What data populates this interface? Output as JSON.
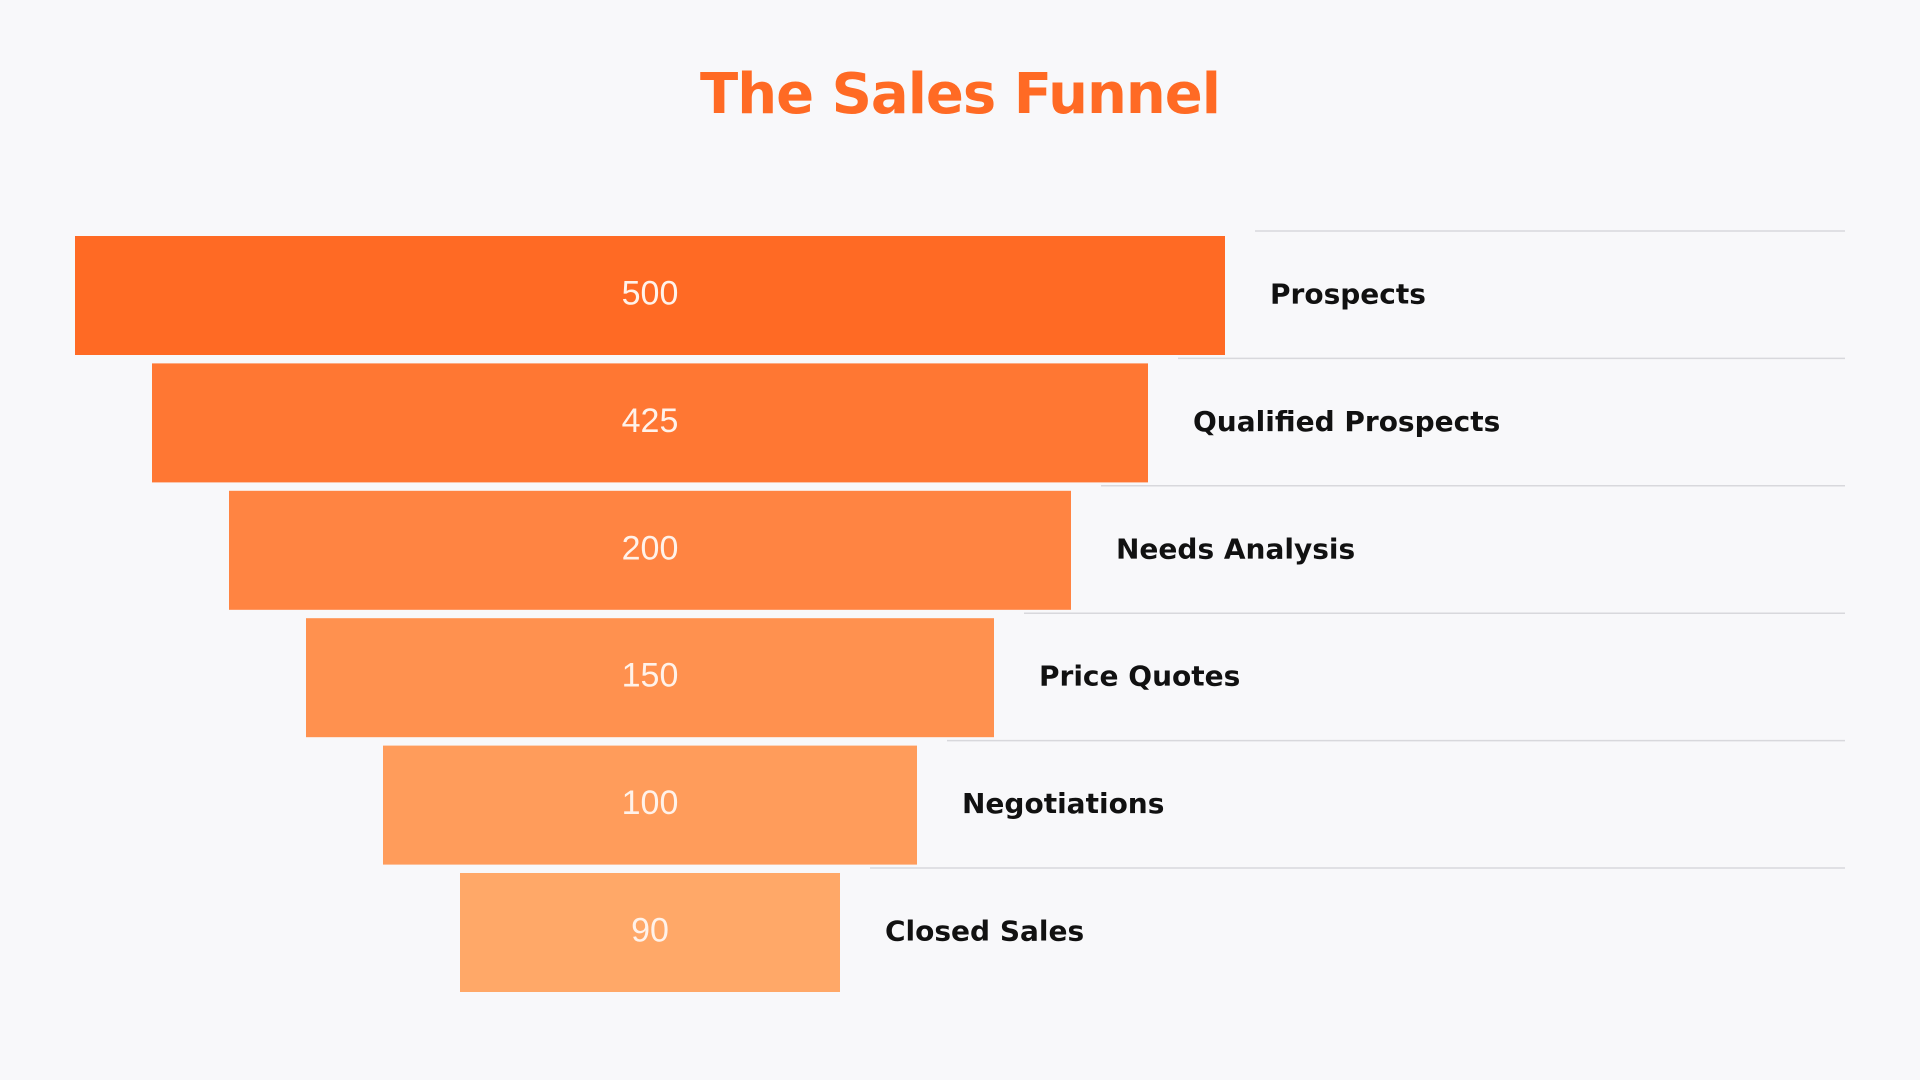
{
  "chart_data": {
    "type": "funnel",
    "title": "The Sales Funnel",
    "categories": [
      "Prospects",
      "Qualified Prospects",
      "Needs Analysis",
      "Price Quotes",
      "Negotiations",
      "Closed Sales"
    ],
    "values": [
      500,
      425,
      200,
      150,
      100,
      90
    ],
    "colors": [
      "#ff6a24",
      "#ff7733",
      "#ff8442",
      "#ff914f",
      "#ff9c5b",
      "#ffa868"
    ]
  }
}
